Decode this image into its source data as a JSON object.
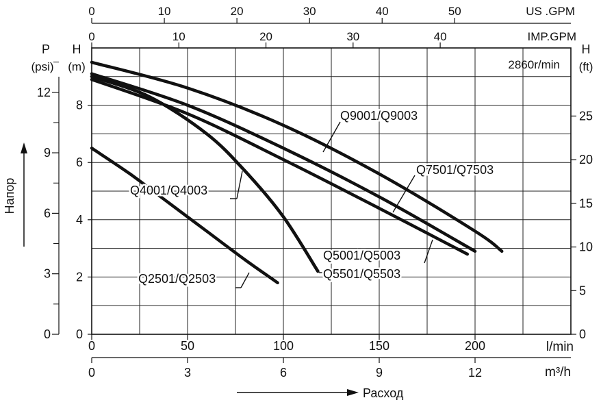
{
  "chart_data": {
    "type": "line",
    "title": "",
    "speed_label": "2860r/min",
    "grid": true,
    "xlabel": "Расход",
    "ylabel": "Напор",
    "x_axes": {
      "lpm": {
        "unit": "l/min",
        "range": [
          0,
          250
        ],
        "ticks": [
          0,
          50,
          100,
          150,
          200
        ]
      },
      "m3h": {
        "unit": "m³/h",
        "range": [
          0,
          15
        ],
        "ticks": [
          0,
          3,
          6,
          9,
          12
        ]
      },
      "imp_gpm": {
        "unit": "IMP.GPM",
        "range": [
          0,
          55
        ],
        "ticks": [
          0,
          10,
          20,
          30,
          40
        ]
      },
      "us_gpm": {
        "unit": "US .GPM",
        "range": [
          0,
          66
        ],
        "ticks": [
          0,
          10,
          20,
          30,
          40,
          50
        ]
      }
    },
    "y_axes": {
      "m": {
        "label": "H",
        "unit": "(m)",
        "range": [
          0,
          10
        ],
        "ticks": [
          0,
          2,
          4,
          6,
          8
        ]
      },
      "psi": {
        "label": "P",
        "unit": "(psi)",
        "range": [
          0,
          14.2
        ],
        "ticks": [
          0,
          3,
          6,
          9,
          12
        ]
      },
      "ft": {
        "label": "H",
        "unit": "(ft)",
        "range": [
          0,
          32.8
        ],
        "ticks": [
          0,
          5,
          10,
          15,
          20,
          25
        ]
      }
    },
    "series": [
      {
        "name": "Q2501/Q2503",
        "x": [
          0,
          20,
          40,
          60,
          80,
          97
        ],
        "y": [
          6.5,
          5.6,
          4.6,
          3.6,
          2.6,
          1.8
        ]
      },
      {
        "name": "Q4001/Q4003",
        "x": [
          0,
          30,
          60,
          80,
          100,
          118
        ],
        "y": [
          9.0,
          8.3,
          7.0,
          5.7,
          4.1,
          2.2
        ]
      },
      {
        "name": "Q5501/Q5503",
        "x": [
          0,
          30,
          60,
          80,
          100,
          118
        ],
        "y": [
          9.0,
          8.3,
          7.0,
          5.7,
          4.1,
          2.2
        ]
      },
      {
        "name": "Q5001/Q5003",
        "x": [
          0,
          50,
          100,
          150,
          196
        ],
        "y": [
          8.9,
          7.7,
          6.1,
          4.4,
          2.8
        ]
      },
      {
        "name": "Q7501/Q7503",
        "x": [
          0,
          50,
          100,
          150,
          200
        ],
        "y": [
          9.1,
          8.0,
          6.5,
          4.8,
          2.9
        ]
      },
      {
        "name": "Q9001/Q9003",
        "x": [
          0,
          50,
          100,
          150,
          200,
          214
        ],
        "y": [
          9.5,
          8.6,
          7.3,
          5.6,
          3.6,
          2.9
        ]
      }
    ]
  }
}
